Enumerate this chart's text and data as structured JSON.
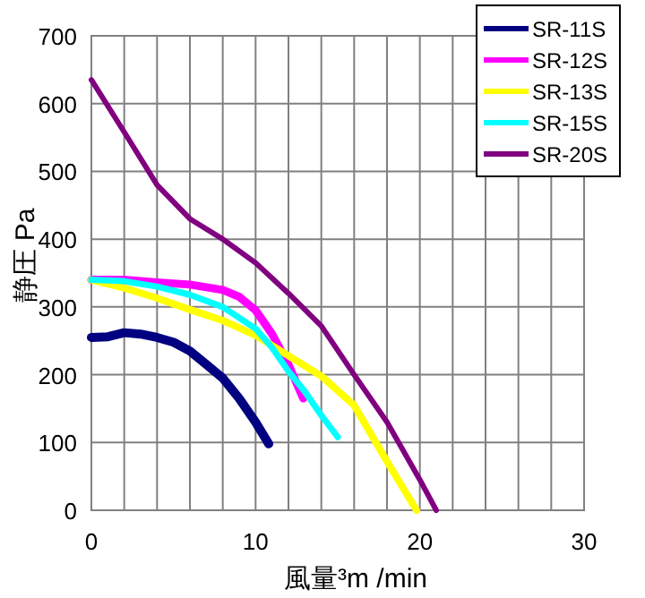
{
  "chart_data": {
    "type": "line",
    "xlabel": "風量³m /min",
    "ylabel": "静圧 Pa",
    "xlim": [
      0,
      30
    ],
    "ylim": [
      0,
      700
    ],
    "xticks": [
      0,
      {
        "value": 2,
        "label": null
      },
      {
        "value": 4,
        "label": null
      },
      {
        "value": 6,
        "label": null
      },
      {
        "value": 8,
        "label": null
      },
      10,
      {
        "value": 12,
        "label": null
      },
      {
        "value": 14,
        "label": null
      },
      {
        "value": 16,
        "label": null
      },
      {
        "value": 18,
        "label": null
      },
      20,
      {
        "value": 22,
        "label": null
      },
      {
        "value": 24,
        "label": null
      },
      {
        "value": 26,
        "label": null
      },
      {
        "value": 28,
        "label": null
      },
      30
    ],
    "yticks": [
      0,
      100,
      200,
      300,
      400,
      500,
      600,
      700
    ],
    "grid": true,
    "legend": "top right",
    "marker": "none",
    "line_style": "solid",
    "series": [
      {
        "name": "SR-11S",
        "color": "#000080",
        "x": [
          0,
          1,
          2,
          3,
          4,
          5,
          6,
          7,
          8,
          9,
          10,
          10.8
        ],
        "values": [
          255,
          256,
          262,
          260,
          255,
          248,
          235,
          215,
          195,
          165,
          130,
          98
        ]
      },
      {
        "name": "SR-12S",
        "color": "#ff00ff",
        "x": [
          0,
          2,
          4,
          6,
          8,
          9,
          10,
          11,
          12,
          12.9
        ],
        "values": [
          340,
          340,
          336,
          333,
          325,
          315,
          295,
          260,
          215,
          165
        ]
      },
      {
        "name": "SR-13S",
        "color": "#ffff00",
        "x": [
          0,
          2,
          4,
          6,
          8,
          10,
          12,
          14,
          16,
          18,
          19.8
        ],
        "values": [
          340,
          328,
          313,
          296,
          280,
          258,
          228,
          198,
          155,
          72,
          0
        ]
      },
      {
        "name": "SR-15S",
        "color": "#00ffff",
        "x": [
          0,
          2,
          4,
          6,
          8,
          10,
          11,
          12,
          13,
          14,
          15
        ],
        "values": [
          340,
          338,
          330,
          318,
          300,
          268,
          240,
          205,
          175,
          140,
          108
        ]
      },
      {
        "name": "SR-20S",
        "color": "#800080",
        "x": [
          0,
          2,
          4,
          6,
          8,
          10,
          12,
          14,
          16,
          18,
          20,
          21
        ],
        "values": [
          635,
          558,
          480,
          430,
          400,
          365,
          320,
          272,
          200,
          130,
          45,
          0
        ]
      }
    ]
  }
}
